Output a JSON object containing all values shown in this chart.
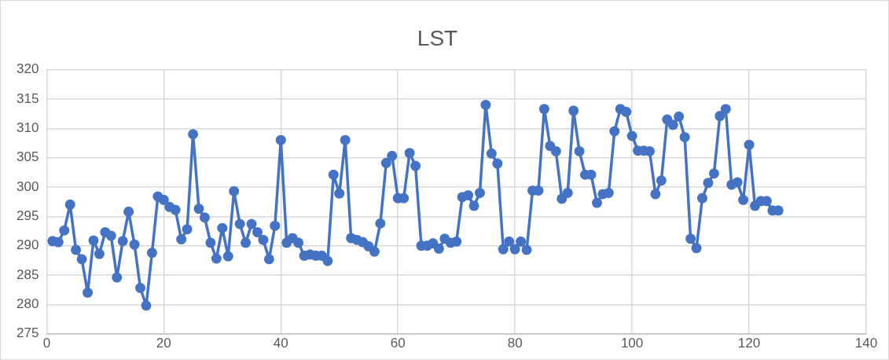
{
  "chart_data": {
    "type": "line",
    "title": "LST",
    "marker": "circle",
    "grid": true,
    "legend": false,
    "xlim": [
      0,
      140
    ],
    "xticks": [
      0,
      20,
      40,
      60,
      80,
      100,
      120,
      140
    ],
    "ylim": [
      275,
      320
    ],
    "yticks": [
      275,
      280,
      285,
      290,
      295,
      300,
      305,
      310,
      315,
      320
    ],
    "x": [
      1,
      2,
      3,
      4,
      5,
      6,
      7,
      8,
      9,
      10,
      11,
      12,
      13,
      14,
      15,
      16,
      17,
      18,
      19,
      20,
      21,
      22,
      23,
      24,
      25,
      26,
      27,
      28,
      29,
      30,
      31,
      32,
      33,
      34,
      35,
      36,
      37,
      38,
      39,
      40,
      41,
      42,
      43,
      44,
      45,
      46,
      47,
      48,
      49,
      50,
      51,
      52,
      53,
      54,
      55,
      56,
      57,
      58,
      59,
      60,
      61,
      62,
      63,
      64,
      65,
      66,
      67,
      68,
      69,
      70,
      71,
      72,
      73,
      74,
      75,
      76,
      77,
      78,
      79,
      80,
      81,
      82,
      83,
      84,
      85,
      86,
      87,
      88,
      89,
      90,
      91,
      92,
      93,
      94,
      95,
      96,
      97,
      98,
      99,
      100,
      101,
      102,
      103,
      104,
      105,
      106,
      107,
      108,
      109,
      110,
      111,
      112,
      113,
      114,
      115,
      116,
      117,
      118,
      119,
      120,
      121,
      122,
      123,
      124,
      125
    ],
    "series": [
      {
        "color": "#4472c4",
        "values": [
          290.8,
          290.6,
          292.6,
          297,
          289.3,
          287.7,
          282,
          290.9,
          288.6,
          292.3,
          291.7,
          284.6,
          290.8,
          295.8,
          290.2,
          282.8,
          279.8,
          288.8,
          298.4,
          297.8,
          296.6,
          296.1,
          291.1,
          292.8,
          309,
          296.3,
          294.8,
          290.5,
          287.8,
          293,
          288.2,
          299.3,
          293.7,
          290.5,
          293.7,
          292.3,
          291,
          287.7,
          293.4,
          308,
          290.5,
          291.3,
          290.5,
          288.3,
          288.5,
          288.3,
          288.3,
          287.4,
          302.1,
          298.9,
          308,
          291.3,
          291,
          290.6,
          289.9,
          289,
          293.8,
          304.1,
          305.3,
          298.1,
          298.1,
          305.8,
          303.6,
          290,
          290,
          290.4,
          289.5,
          291.2,
          290.5,
          290.7,
          298.3,
          298.6,
          296.8,
          299,
          314,
          305.7,
          304,
          289.4,
          290.7,
          289.4,
          290.7,
          289.3,
          299.4,
          299.4,
          313.3,
          307,
          306.1,
          298,
          299,
          313,
          306.1,
          302.1,
          302.1,
          297.3,
          298.8,
          299,
          309.5,
          313.3,
          312.8,
          308.7,
          306.2,
          306.2,
          306.1,
          298.8,
          301.1,
          311.5,
          310.6,
          312,
          308.5,
          291.2,
          289.6,
          298.1,
          300.7,
          302.3,
          312.1,
          313.3,
          300.4,
          300.8,
          297.8,
          307.2,
          296.8,
          297.6,
          297.6,
          296,
          296
        ]
      }
    ]
  }
}
